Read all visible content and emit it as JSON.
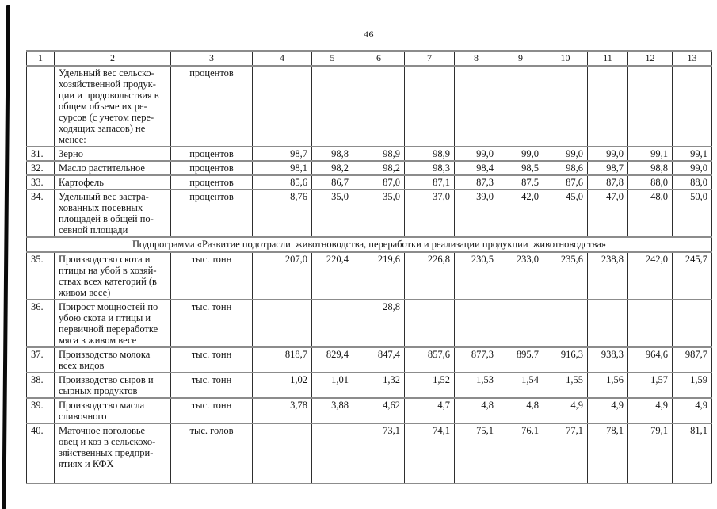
{
  "page_number": "46",
  "table": {
    "column_headers": [
      "1",
      "2",
      "3",
      "4",
      "5",
      "6",
      "7",
      "8",
      "9",
      "10",
      "11",
      "12",
      "13"
    ],
    "rows": [
      {
        "kind": "data",
        "num": "",
        "name": "Удельный вес сельско-\nхозяйственной продук-\nции и продовольствия в\nобщем объеме их ре-\nсурсов (с учетом пере-\nходящих запасов) не\nменее:",
        "unit": "процентов",
        "values": [
          "",
          "",
          "",
          "",
          "",
          "",
          "",
          "",
          "",
          ""
        ]
      },
      {
        "kind": "data",
        "num": "31.",
        "name": "Зерно",
        "unit": "процентов",
        "values": [
          "98,7",
          "98,8",
          "98,9",
          "98,9",
          "99,0",
          "99,0",
          "99,0",
          "99,0",
          "99,1",
          "99,1"
        ]
      },
      {
        "kind": "data",
        "num": "32.",
        "name": "Масло растительное",
        "unit": "процентов",
        "values": [
          "98,1",
          "98,2",
          "98,2",
          "98,3",
          "98,4",
          "98,5",
          "98,6",
          "98,7",
          "98,8",
          "99,0"
        ]
      },
      {
        "kind": "data",
        "num": "33.",
        "name": "Картофель",
        "unit": "процентов",
        "values": [
          "85,6",
          "86,7",
          "87,0",
          "87,1",
          "87,3",
          "87,5",
          "87,6",
          "87,8",
          "88,0",
          "88,0"
        ]
      },
      {
        "kind": "data",
        "num": "34.",
        "name": "Удельный вес застра-\nхованных посевных\nплощадей в общей по-\nсевной площади",
        "unit": "процентов",
        "values": [
          "8,76",
          "35,0",
          "35,0",
          "37,0",
          "39,0",
          "42,0",
          "45,0",
          "47,0",
          "48,0",
          "50,0"
        ]
      },
      {
        "kind": "section",
        "label": "Подпрограмма «Развитие подотрасли  животноводства, переработки и реализации продукции  животноводства»"
      },
      {
        "kind": "data",
        "num": "35.",
        "name": "Производство скота и\nптицы на убой в хозяй-\nствах всех категорий (в\nживом весе)",
        "unit": "тыс. тонн",
        "values": [
          "207,0",
          "220,4",
          "219,6",
          "226,8",
          "230,5",
          "233,0",
          "235,6",
          "238,8",
          "242,0",
          "245,7"
        ]
      },
      {
        "kind": "data",
        "num": "36.",
        "name": "Прирост мощностей по\nубою скота и птицы и\nпервичной переработке\nмяса в живом весе",
        "unit": "тыс. тонн",
        "values": [
          "",
          "",
          "28,8",
          "",
          "",
          "",
          "",
          "",
          "",
          ""
        ]
      },
      {
        "kind": "data",
        "num": "37.",
        "name": "Производство молока\nвсех видов",
        "unit": "тыс. тонн",
        "values": [
          "818,7",
          "829,4",
          "847,4",
          "857,6",
          "877,3",
          "895,7",
          "916,3",
          "938,3",
          "964,6",
          "987,7"
        ]
      },
      {
        "kind": "data",
        "num": "38.",
        "name": "Производство сыров и\nсырных продуктов",
        "unit": "тыс. тонн",
        "values": [
          "1,02",
          "1,01",
          "1,32",
          "1,52",
          "1,53",
          "1,54",
          "1,55",
          "1,56",
          "1,57",
          "1,59"
        ]
      },
      {
        "kind": "data",
        "num": "39.",
        "name": "Производство масла\nсливочного",
        "unit": "тыс. тонн",
        "values": [
          "3,78",
          "3,88",
          "4,62",
          "4,7",
          "4,8",
          "4,8",
          "4,9",
          "4,9",
          "4,9",
          "4,9"
        ]
      },
      {
        "kind": "data",
        "num": "40.",
        "name": "Маточное поголовье\nовец и коз в сельскохо-\nзяйственных предпри-\nятиях и КФХ",
        "unit": "тыс. голов",
        "values": [
          "",
          "",
          "73,1",
          "74,1",
          "75,1",
          "76,1",
          "77,1",
          "78,1",
          "79,1",
          "81,1"
        ]
      }
    ]
  }
}
